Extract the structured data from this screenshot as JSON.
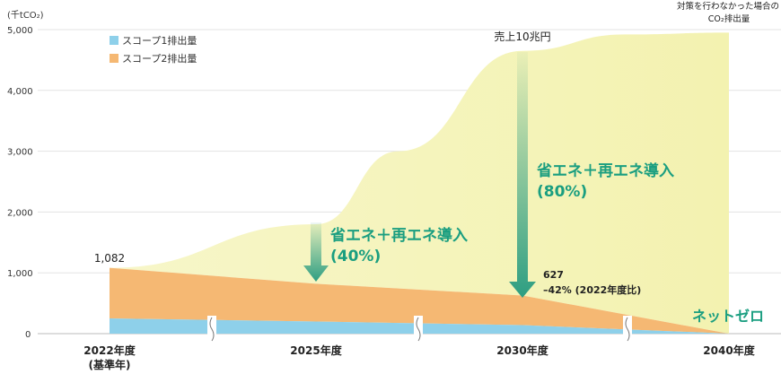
{
  "chart_data": {
    "type": "area",
    "unit_label": "(千tCO₂)",
    "y_ticks": [
      0,
      1000,
      2000,
      3000,
      4000,
      5000
    ],
    "y_tick_labels": [
      "0",
      "1,000",
      "2,000",
      "3,000",
      "4,000",
      "5,000"
    ],
    "ylim": [
      0,
      5000
    ],
    "categories": [
      "2022年度",
      "2025年度",
      "2030年度",
      "2040年度"
    ],
    "category_sublabels": [
      "(基準年)",
      "",
      "",
      ""
    ],
    "series": [
      {
        "name": "スコープ1排出量",
        "color": "#8ed0ea",
        "values": [
          250,
          200,
          140,
          0
        ]
      },
      {
        "name": "スコープ2排出量",
        "color": "#f5b873",
        "values": [
          832,
          620,
          487,
          0
        ]
      }
    ],
    "bau": {
      "label_line1": "対策を行わなかった場合の",
      "label_line2": "CO₂排出量",
      "color": "#f5f4b8",
      "x": [
        2022,
        2025,
        2027,
        2030,
        2035,
        2040
      ],
      "values": [
        1082,
        1800,
        3000,
        4650,
        4920,
        4950
      ]
    },
    "annotations": {
      "base_value": "1,082",
      "sales": "売上10兆円",
      "arrow_2025_line1": "省エネ＋再エネ導入",
      "arrow_2025_line2": "(40%)",
      "arrow_2030_line1": "省エネ＋再エネ導入",
      "arrow_2030_line2": "(80%)",
      "value_2030": "627",
      "pct_2030": "–42% (2022年度比)",
      "net_zero": "ネットゼロ"
    },
    "colors": {
      "arrow": "#2e9e82",
      "label_green": "#1a9e80",
      "grid": "#e3e3e3"
    },
    "grid": true,
    "legend_position": "top-left"
  }
}
